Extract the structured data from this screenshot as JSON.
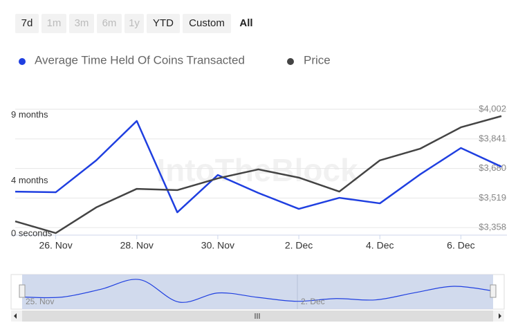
{
  "range_buttons": [
    "7d",
    "1m",
    "3m",
    "6m",
    "1y",
    "YTD",
    "Custom",
    "All"
  ],
  "chart_data": {
    "type": "line",
    "watermark": "IntoTheBlock",
    "categories": [
      null,
      "26. Nov",
      null,
      "28. Nov",
      null,
      "30. Nov",
      null,
      "2. Dec",
      null,
      "4. Dec",
      null,
      "6. Dec",
      null
    ],
    "series": [
      {
        "name": "Average Time Held Of Coins Transacted",
        "color": "#1f3fe0",
        "values": [
          3.3,
          3.25,
          5.67,
          8.66,
          1.73,
          4.56,
          3.2,
          1.99,
          2.83,
          2.41,
          4.62,
          6.61,
          5.19
        ]
      },
      {
        "name": "Price",
        "color": "#444444",
        "axis": "y2",
        "values": [
          3392,
          3328,
          3468,
          3569,
          3562,
          3626,
          3675,
          3630,
          3554,
          3724,
          3788,
          3904,
          3965
        ]
      }
    ],
    "ylim": [
      0,
      9.6
    ],
    "yticks": [
      {
        "value": 0,
        "label": "0 seconds"
      },
      {
        "value": 4,
        "label": "4 months"
      },
      {
        "value": 9,
        "label": "9 months"
      }
    ],
    "y2lim": [
      3317,
      4006
    ],
    "y2ticks": [
      {
        "value": 3358,
        "label": "$3,358"
      },
      {
        "value": 3519,
        "label": "$3,519"
      },
      {
        "value": 3680,
        "label": "$3,680"
      },
      {
        "value": 3841,
        "label": "$3,841"
      },
      {
        "value": 4002,
        "label": "$4,002"
      }
    ],
    "grid": true,
    "navigator": {
      "labels": [
        "25. Nov",
        "2. Dec"
      ]
    }
  }
}
